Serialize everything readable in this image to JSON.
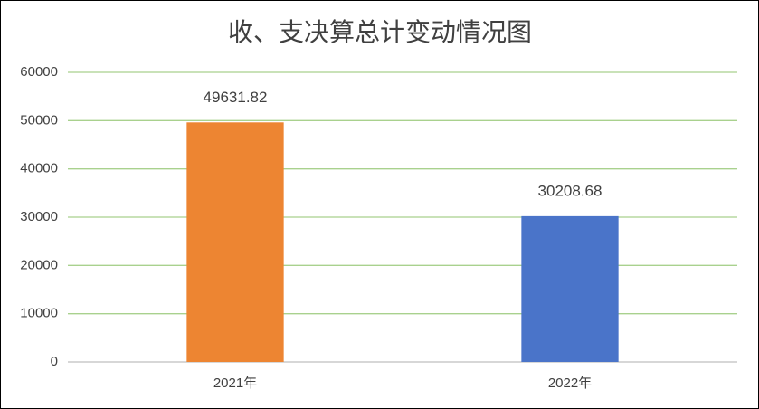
{
  "chart_data": {
    "type": "bar",
    "title": "收、支决算总计变动情况图",
    "categories": [
      "2021年",
      "2022年"
    ],
    "values": [
      49631.82,
      30208.68
    ],
    "colors": [
      "#ed8532",
      "#4a74c9"
    ],
    "ylim": [
      0,
      60000
    ],
    "yticks": [
      0,
      10000,
      20000,
      30000,
      40000,
      50000,
      60000
    ],
    "grid": true
  }
}
